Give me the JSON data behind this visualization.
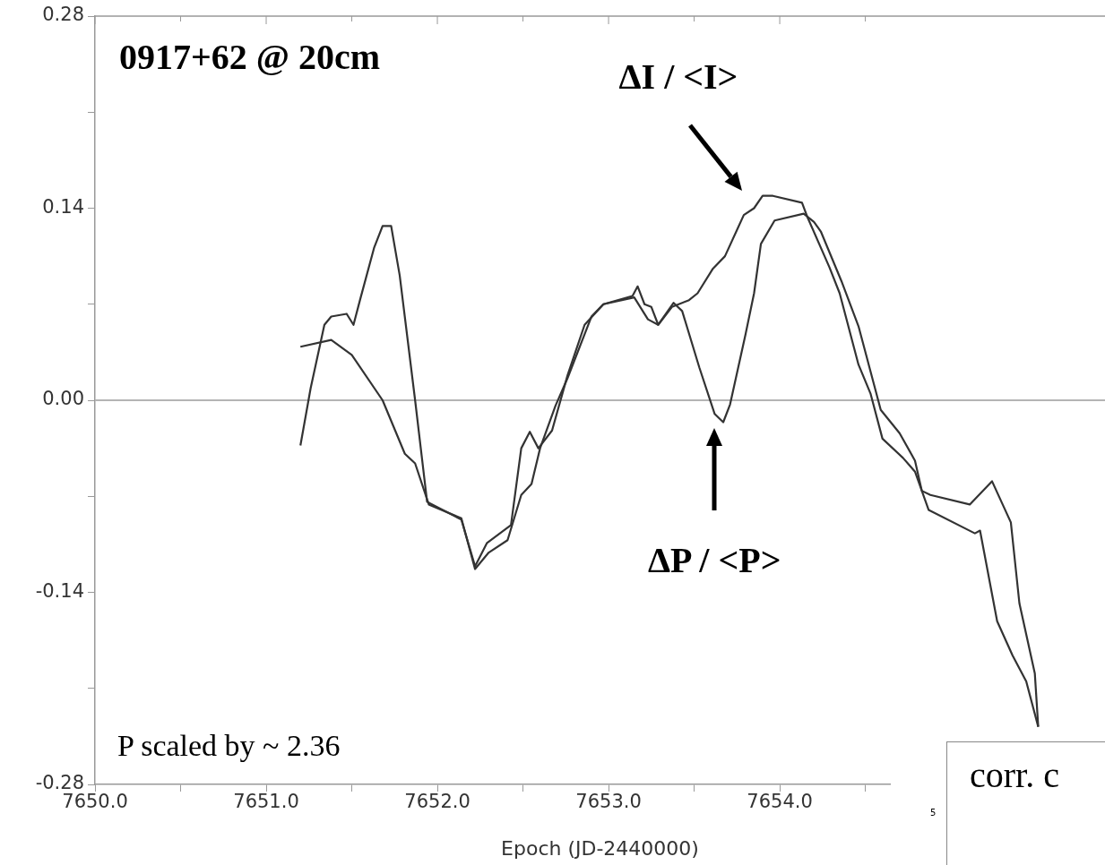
{
  "chart_data": {
    "type": "line",
    "title": "0917+62 @ 20cm",
    "xlabel": "Epoch (JD-2440000)",
    "xlim": [
      7650,
      7655.9
    ],
    "xticks": [
      {
        "value": 7650,
        "label": "7650.0"
      },
      {
        "value": 7650.5,
        "label": null
      },
      {
        "value": 7651,
        "label": "7651.0"
      },
      {
        "value": 7651.5,
        "label": null
      },
      {
        "value": 7652,
        "label": "7652.0"
      },
      {
        "value": 7652.5,
        "label": null
      },
      {
        "value": 7653,
        "label": "7653.0"
      },
      {
        "value": 7653.5,
        "label": null
      },
      {
        "value": 7654,
        "label": "7654.0"
      },
      {
        "value": 7654.5,
        "label": null
      }
    ],
    "ylim": [
      -0.28,
      0.28
    ],
    "yticks": [
      -0.28,
      {
        "value": -0.21,
        "label": null
      },
      -0.14,
      {
        "value": -0.07,
        "label": null
      },
      {
        "value": 0,
        "label": "0.00"
      },
      {
        "value": 0.07,
        "label": null
      },
      0.14,
      {
        "value": 0.21,
        "label": null
      },
      0.28
    ],
    "ref_lines": [
      {
        "axis": "y",
        "value": 0,
        "color": "#b4b4b4"
      }
    ],
    "marker": "none",
    "line_style": "solid",
    "series": [
      {
        "color": "#333333",
        "x": [
          7651.2,
          7651.38,
          7651.5,
          7651.68,
          7651.81,
          7651.87,
          7651.95,
          7652.14,
          7652.22,
          7652.3,
          7652.41,
          7652.49,
          7652.55,
          7652.6,
          7652.69,
          7652.76,
          7652.9,
          7652.97,
          7653.15,
          7653.23,
          7653.29,
          7653.37,
          7653.47,
          7653.52,
          7653.61,
          7653.68,
          7653.79,
          7653.85,
          7653.9,
          7653.96,
          7654.13,
          7654.16,
          7654.29,
          7654.35,
          7654.46,
          7654.53,
          7654.6,
          7654.72,
          7654.79,
          7654.87,
          7655.14,
          7655.17,
          7655.27,
          7655.36,
          7655.44,
          7655.51
        ],
        "values": [
          0.039,
          0.044,
          0.033,
          0.0,
          -0.039,
          -0.046,
          -0.076,
          -0.086,
          -0.123,
          -0.111,
          -0.102,
          -0.069,
          -0.061,
          -0.035,
          -0.004,
          0.016,
          0.061,
          0.07,
          0.075,
          0.059,
          0.055,
          0.068,
          0.073,
          0.078,
          0.096,
          0.105,
          0.135,
          0.14,
          0.149,
          0.149,
          0.144,
          0.134,
          0.097,
          0.078,
          0.026,
          0.005,
          -0.028,
          -0.042,
          -0.052,
          -0.08,
          -0.097,
          -0.095,
          -0.161,
          -0.186,
          -0.205,
          -0.238
        ]
      },
      {
        "color": "#333333",
        "x": [
          7651.2,
          7651.26,
          7651.34,
          7651.38,
          7651.47,
          7651.51,
          7651.55,
          7651.63,
          7651.68,
          7651.73,
          7651.78,
          7651.87,
          7651.94,
          7652.14,
          7652.22,
          7652.29,
          7652.43,
          7652.49,
          7652.54,
          7652.59,
          7652.67,
          7652.76,
          7652.86,
          7652.97,
          7653.14,
          7653.17,
          7653.21,
          7653.25,
          7653.29,
          7653.38,
          7653.43,
          7653.53,
          7653.62,
          7653.67,
          7653.71,
          7653.8,
          7653.85,
          7653.89,
          7653.97,
          7654.14,
          7654.2,
          7654.24,
          7654.36,
          7654.46,
          7654.59,
          7654.7,
          7654.79,
          7654.83,
          7654.88,
          7655.11,
          7655.24,
          7655.35,
          7655.4,
          7655.49,
          7655.51
        ],
        "values": [
          -0.033,
          0.009,
          0.055,
          0.061,
          0.063,
          0.055,
          0.074,
          0.111,
          0.127,
          0.127,
          0.091,
          0.0,
          -0.074,
          -0.087,
          -0.121,
          -0.104,
          -0.091,
          -0.035,
          -0.023,
          -0.035,
          -0.022,
          0.018,
          0.055,
          0.07,
          0.076,
          0.083,
          0.07,
          0.068,
          0.055,
          0.071,
          0.065,
          0.024,
          -0.01,
          -0.016,
          -0.003,
          0.048,
          0.078,
          0.114,
          0.131,
          0.136,
          0.13,
          0.123,
          0.087,
          0.054,
          -0.007,
          -0.024,
          -0.044,
          -0.066,
          -0.069,
          -0.076,
          -0.059,
          -0.089,
          -0.148,
          -0.199,
          -0.238
        ]
      }
    ],
    "annotations": [
      "ΔI / <I>",
      "ΔP / <P>",
      "P scaled by ~ 2.36",
      "corr. c",
      "5"
    ]
  }
}
